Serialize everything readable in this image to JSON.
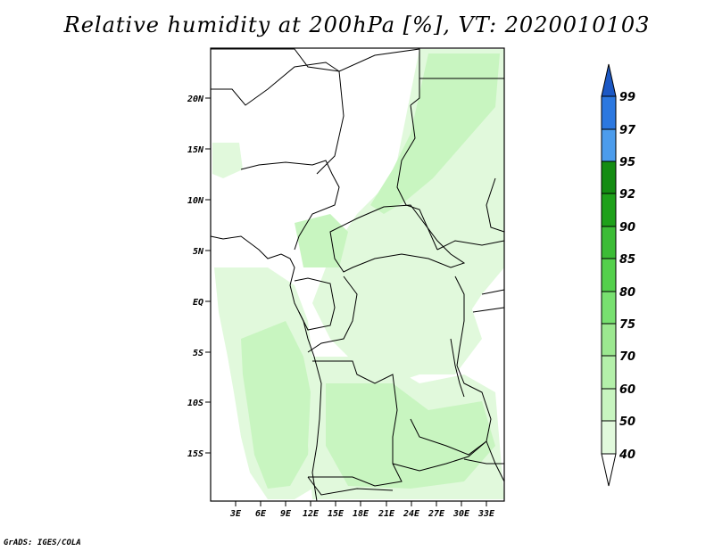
{
  "title": "Relative humidity at 200hPa [%], VT: 2020010103",
  "credit": "GrADS: IGES/COLA",
  "map": {
    "lat_ticks": [
      "20N",
      "15N",
      "10N",
      "5N",
      "EQ",
      "5S",
      "10S",
      "15S"
    ],
    "lon_ticks": [
      "3E",
      "6E",
      "9E",
      "12E",
      "15E",
      "18E",
      "21E",
      "24E",
      "27E",
      "30E",
      "33E"
    ]
  },
  "colorbar": {
    "levels": [
      "40",
      "50",
      "60",
      "70",
      "75",
      "80",
      "85",
      "90",
      "92",
      "95",
      "97",
      "99"
    ],
    "colors": [
      "#f0fcf0",
      "#e1f9dc",
      "#c8f5c0",
      "#b4f0aa",
      "#9ce890",
      "#78e070",
      "#54d04c",
      "#3cbc36",
      "#1ea01a",
      "#148c12",
      "#4c9cec",
      "#2c78e0",
      "#1c58c4"
    ],
    "under_color": "#ffffff"
  }
}
